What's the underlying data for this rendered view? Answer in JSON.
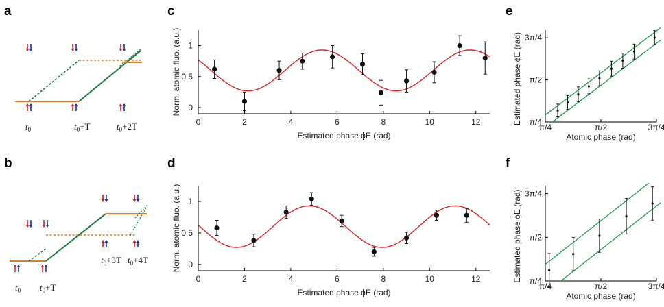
{
  "panel_labels": {
    "a": "a",
    "b": "b",
    "c": "c",
    "d": "d",
    "e": "e",
    "f": "f"
  },
  "colors": {
    "fit": "#e02020",
    "green": "#1a7a3a",
    "orange": "#e87a1e",
    "spin_red": "#d42020",
    "spin_blue": "#2030a0",
    "marker": "#111111"
  },
  "diagram_a": {
    "times": [
      {
        "base": "t",
        "sub": "0",
        "suffix": ""
      },
      {
        "base": "t",
        "sub": "0",
        "suffix": "+T"
      },
      {
        "base": "t",
        "sub": "0",
        "suffix": "+2T"
      }
    ]
  },
  "diagram_b": {
    "times": [
      {
        "base": "t",
        "sub": "0",
        "suffix": ""
      },
      {
        "base": "t",
        "sub": "0",
        "suffix": "+T"
      },
      {
        "base": "t",
        "sub": "0",
        "suffix": "+3T"
      },
      {
        "base": "t",
        "sub": "0",
        "suffix": "+4T"
      }
    ]
  },
  "chart_data": [
    {
      "panel": "c",
      "type": "scatter",
      "xlabel": "Estimated phase ϕE (rad)",
      "ylabel": "Norm. atomic fluo. (a.u.)",
      "xlim": [
        0,
        12.6
      ],
      "ylim": [
        -0.1,
        1.25
      ],
      "xticks": [
        "0",
        "2",
        "4",
        "6",
        "8",
        "10",
        "12"
      ],
      "yticks": [
        "0",
        "0.5",
        "1"
      ],
      "points": [
        {
          "x": 0.7,
          "y": 0.62,
          "err": 0.15
        },
        {
          "x": 2.0,
          "y": 0.1,
          "err": 0.15
        },
        {
          "x": 3.5,
          "y": 0.6,
          "err": 0.15
        },
        {
          "x": 4.5,
          "y": 0.75,
          "err": 0.13
        },
        {
          "x": 5.8,
          "y": 0.82,
          "err": 0.18
        },
        {
          "x": 7.1,
          "y": 0.7,
          "err": 0.17
        },
        {
          "x": 7.9,
          "y": 0.24,
          "err": 0.2
        },
        {
          "x": 9.0,
          "y": 0.43,
          "err": 0.18
        },
        {
          "x": 10.2,
          "y": 0.57,
          "err": 0.17
        },
        {
          "x": 11.3,
          "y": 1.0,
          "err": 0.16
        },
        {
          "x": 12.4,
          "y": 0.8,
          "err": 0.26
        }
      ],
      "fit": {
        "mean": 0.6,
        "amplitude": 0.33,
        "period": 6.4,
        "x_of_max": 5.35,
        "color": "#e02020"
      }
    },
    {
      "panel": "d",
      "type": "scatter",
      "xlabel": "Estimated phase ϕE (rad)",
      "ylabel": "Norm. atomic fluo. (a.u.)",
      "xlim": [
        0,
        12.6
      ],
      "ylim": [
        -0.1,
        1.25
      ],
      "xticks": [
        "0",
        "2",
        "4",
        "6",
        "8",
        "10",
        "12"
      ],
      "yticks": [
        "0",
        "0.5",
        "1"
      ],
      "points": [
        {
          "x": 0.8,
          "y": 0.58,
          "err": 0.12
        },
        {
          "x": 2.4,
          "y": 0.38,
          "err": 0.1
        },
        {
          "x": 3.8,
          "y": 0.83,
          "err": 0.1
        },
        {
          "x": 4.9,
          "y": 1.04,
          "err": 0.1
        },
        {
          "x": 6.2,
          "y": 0.69,
          "err": 0.09
        },
        {
          "x": 7.6,
          "y": 0.2,
          "err": 0.07
        },
        {
          "x": 9.0,
          "y": 0.42,
          "err": 0.09
        },
        {
          "x": 10.3,
          "y": 0.78,
          "err": 0.08
        },
        {
          "x": 11.6,
          "y": 0.78,
          "err": 0.11
        }
      ],
      "fit": {
        "mean": 0.6,
        "amplitude": 0.33,
        "period": 6.3,
        "x_of_max": 4.8,
        "color": "#e02020"
      }
    },
    {
      "panel": "e",
      "type": "scatter",
      "xlabel": "Atomic phase (rad)",
      "ylabel": "Estimated phase ϕE (rad)",
      "xlim": [
        0.785,
        2.356
      ],
      "ylim": [
        0.785,
        2.5
      ],
      "xticks": [
        "π/4",
        "π/2",
        "3π/4"
      ],
      "yticks": [
        "π/4",
        "π/2",
        "3π/4"
      ],
      "points": [
        {
          "x": 0.96,
          "y": 1.0,
          "err": 0.12
        },
        {
          "x": 1.1,
          "y": 1.15,
          "err": 0.13
        },
        {
          "x": 1.25,
          "y": 1.3,
          "err": 0.14
        },
        {
          "x": 1.4,
          "y": 1.45,
          "err": 0.14
        },
        {
          "x": 1.55,
          "y": 1.6,
          "err": 0.14
        },
        {
          "x": 1.72,
          "y": 1.78,
          "err": 0.14
        },
        {
          "x": 1.88,
          "y": 1.93,
          "err": 0.14
        },
        {
          "x": 2.04,
          "y": 2.1,
          "err": 0.14
        },
        {
          "x": 2.33,
          "y": 2.36,
          "err": 0.13
        }
      ],
      "bands": {
        "upper_offset": 0.13,
        "lower_offset": -0.1,
        "color": "#1a9e4a"
      }
    },
    {
      "panel": "f",
      "type": "scatter",
      "xlabel": "Atomic phase (rad)",
      "ylabel": "Estimated phase ϕE (rad)",
      "xlim": [
        0.785,
        2.356
      ],
      "ylim": [
        0.785,
        2.5
      ],
      "xticks": [
        "π/4",
        "π/2",
        "3π/4"
      ],
      "yticks": [
        "π/4",
        "π/2",
        "3π/4"
      ],
      "points": [
        {
          "x": 0.84,
          "y": 0.98,
          "err": 0.3
        },
        {
          "x": 1.18,
          "y": 1.27,
          "err": 0.3
        },
        {
          "x": 1.55,
          "y": 1.6,
          "err": 0.3
        },
        {
          "x": 1.93,
          "y": 1.95,
          "err": 0.32
        },
        {
          "x": 2.3,
          "y": 2.18,
          "err": 0.3
        }
      ],
      "bands": {
        "upper_offset": 0.3,
        "lower_offset": -0.22,
        "color": "#1a9e4a"
      }
    }
  ]
}
